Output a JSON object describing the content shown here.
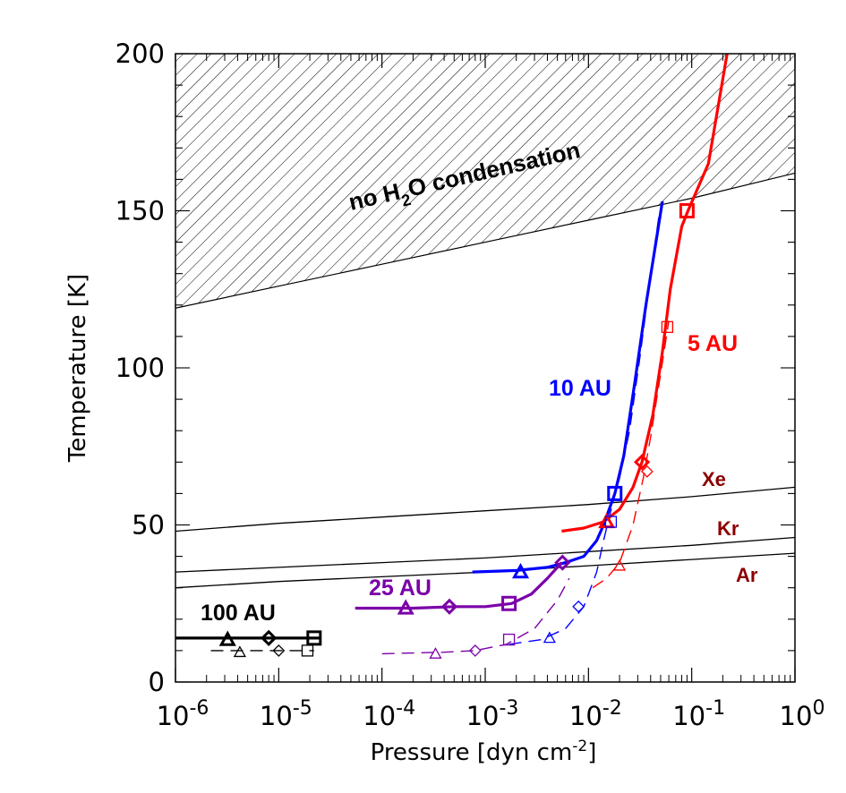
{
  "chart_data": {
    "type": "line",
    "xlabel": "Pressure [dyn cm",
    "xlabel_superscript": "-2",
    "xlabel_close": "]",
    "ylabel": "Temperature [K]",
    "x_scale": "log",
    "xlim": [
      1e-06,
      1
    ],
    "ylim": [
      0,
      200
    ],
    "x_ticks": [
      {
        "value": 1e-06,
        "base": "10",
        "exp": "-6"
      },
      {
        "value": 1e-05,
        "base": "10",
        "exp": "-5"
      },
      {
        "value": 0.0001,
        "base": "10",
        "exp": "-4"
      },
      {
        "value": 0.001,
        "base": "10",
        "exp": "-3"
      },
      {
        "value": 0.01,
        "base": "10",
        "exp": "-2"
      },
      {
        "value": 0.1,
        "base": "10",
        "exp": "-1"
      },
      {
        "value": 1,
        "base": "10",
        "exp": "0"
      }
    ],
    "y_ticks": [
      {
        "value": 0,
        "label": "0"
      },
      {
        "value": 50,
        "label": "50"
      },
      {
        "value": 100,
        "label": "100"
      },
      {
        "value": 150,
        "label": "150"
      },
      {
        "value": 200,
        "label": "200"
      }
    ],
    "shaded_region": {
      "label_prefix": "no H",
      "label_sub": "2",
      "label_suffix": "O condensation",
      "boundary": [
        [
          1e-06,
          119
        ],
        [
          1e-05,
          126
        ],
        [
          0.0001,
          133
        ],
        [
          0.001,
          140
        ],
        [
          0.01,
          147
        ],
        [
          0.1,
          154
        ],
        [
          1,
          162
        ]
      ],
      "pattern": "diagonal hatching"
    },
    "condensation_curves": [
      {
        "name": "Xe",
        "color": "#000000",
        "points": [
          [
            1e-06,
            48
          ],
          [
            1e-05,
            50.5
          ],
          [
            0.0001,
            52.5
          ],
          [
            0.001,
            54.5
          ],
          [
            0.01,
            56.5
          ],
          [
            0.1,
            59
          ],
          [
            1,
            62
          ]
        ]
      },
      {
        "name": "Kr",
        "color": "#000000",
        "points": [
          [
            1e-06,
            35
          ],
          [
            1e-05,
            36.5
          ],
          [
            0.0001,
            38
          ],
          [
            0.001,
            39.5
          ],
          [
            0.01,
            41.5
          ],
          [
            0.1,
            43.5
          ],
          [
            1,
            46
          ]
        ]
      },
      {
        "name": "Ar",
        "color": "#000000",
        "points": [
          [
            1e-06,
            30
          ],
          [
            1e-05,
            32
          ],
          [
            0.0001,
            33.5
          ],
          [
            0.001,
            35
          ],
          [
            0.01,
            37
          ],
          [
            0.1,
            39
          ],
          [
            1,
            41
          ]
        ]
      }
    ],
    "series": [
      {
        "name": "5 AU",
        "color": "#ff0000",
        "solid": [
          [
            0.0055,
            48
          ],
          [
            0.009,
            49
          ],
          [
            0.014,
            51
          ],
          [
            0.02,
            55
          ],
          [
            0.027,
            62
          ],
          [
            0.033,
            70
          ],
          [
            0.042,
            85
          ],
          [
            0.052,
            105
          ],
          [
            0.062,
            125
          ],
          [
            0.08,
            145
          ],
          [
            0.092,
            150
          ],
          [
            0.145,
            165
          ],
          [
            0.22,
            200
          ]
        ],
        "solid_markers": [
          {
            "shape": "triangle",
            "x": 0.015,
            "y": 51
          },
          {
            "shape": "diamond",
            "x": 0.033,
            "y": 70
          },
          {
            "shape": "square",
            "x": 0.09,
            "y": 150
          }
        ],
        "dashed": [
          [
            0.011,
            30
          ],
          [
            0.015,
            33
          ],
          [
            0.02,
            38
          ],
          [
            0.027,
            50
          ],
          [
            0.034,
            65
          ],
          [
            0.04,
            78
          ],
          [
            0.05,
            98
          ],
          [
            0.06,
            115
          ]
        ],
        "dashed_markers": [
          {
            "shape": "triangle",
            "x": 0.02,
            "y": 37
          },
          {
            "shape": "diamond",
            "x": 0.037,
            "y": 67
          },
          {
            "shape": "square",
            "x": 0.058,
            "y": 113
          }
        ]
      },
      {
        "name": "10 AU",
        "color": "#0000ff",
        "solid": [
          [
            0.00075,
            35
          ],
          [
            0.002,
            35.5
          ],
          [
            0.004,
            36.5
          ],
          [
            0.006,
            38
          ],
          [
            0.009,
            40
          ],
          [
            0.012,
            45
          ],
          [
            0.014,
            50
          ],
          [
            0.018,
            60
          ],
          [
            0.022,
            72
          ],
          [
            0.028,
            95
          ],
          [
            0.036,
            120
          ],
          [
            0.045,
            140
          ],
          [
            0.052,
            153
          ]
        ],
        "solid_markers": [
          {
            "shape": "triangle",
            "x": 0.0022,
            "y": 35
          },
          {
            "shape": "square",
            "x": 0.018,
            "y": 60
          }
        ],
        "dashed": [
          [
            0.0017,
            12
          ],
          [
            0.0035,
            13.5
          ],
          [
            0.006,
            17
          ],
          [
            0.009,
            24
          ],
          [
            0.012,
            35
          ],
          [
            0.014,
            45
          ],
          [
            0.016,
            53
          ],
          [
            0.02,
            65
          ],
          [
            0.025,
            80
          ],
          [
            0.032,
            105
          ],
          [
            0.04,
            130
          ],
          [
            0.048,
            148
          ],
          [
            0.053,
            153
          ]
        ],
        "dashed_markers": [
          {
            "shape": "triangle",
            "x": 0.0042,
            "y": 14
          },
          {
            "shape": "diamond",
            "x": 0.008,
            "y": 24
          },
          {
            "shape": "square",
            "x": 0.0165,
            "y": 51
          }
        ]
      },
      {
        "name": "25 AU",
        "color": "#7b00a8",
        "solid": [
          [
            5.5e-05,
            23.5
          ],
          [
            0.0002,
            23.5
          ],
          [
            0.0005,
            24
          ],
          [
            0.001,
            24
          ],
          [
            0.0018,
            25
          ],
          [
            0.0028,
            28
          ],
          [
            0.004,
            33
          ],
          [
            0.0055,
            38
          ]
        ],
        "solid_markers": [
          {
            "shape": "triangle",
            "x": 0.00017,
            "y": 23.5
          },
          {
            "shape": "diamond",
            "x": 0.00045,
            "y": 24
          },
          {
            "shape": "square",
            "x": 0.0017,
            "y": 25
          },
          {
            "shape": "diamond",
            "x": 0.0056,
            "y": 38
          }
        ],
        "dashed": [
          [
            0.0001,
            9
          ],
          [
            0.0004,
            9.5
          ],
          [
            0.0008,
            10
          ],
          [
            0.0016,
            12
          ],
          [
            0.003,
            17
          ],
          [
            0.005,
            26
          ],
          [
            0.0065,
            33
          ]
        ],
        "dashed_markers": [
          {
            "shape": "triangle",
            "x": 0.00033,
            "y": 9
          },
          {
            "shape": "diamond",
            "x": 0.0008,
            "y": 10
          },
          {
            "shape": "square",
            "x": 0.0017,
            "y": 13.5
          }
        ]
      },
      {
        "name": "100 AU",
        "color": "#000000",
        "solid": [
          [
            1e-06,
            14
          ],
          [
            3e-06,
            14
          ],
          [
            1e-05,
            14
          ],
          [
            2.5e-05,
            14
          ]
        ],
        "solid_markers": [
          {
            "shape": "triangle",
            "x": 3.2e-06,
            "y": 13.5
          },
          {
            "shape": "diamond",
            "x": 8e-06,
            "y": 14
          },
          {
            "shape": "square",
            "x": 2.2e-05,
            "y": 14
          }
        ],
        "dashed": [
          [
            2.2e-06,
            10
          ],
          [
            5e-06,
            10
          ],
          [
            1e-05,
            10
          ],
          [
            2.2e-05,
            10
          ]
        ],
        "dashed_markers": [
          {
            "shape": "triangle",
            "x": 4.2e-06,
            "y": 9.5
          },
          {
            "shape": "diamond",
            "x": 1e-05,
            "y": 10
          },
          {
            "shape": "square",
            "x": 1.9e-05,
            "y": 10
          }
        ]
      }
    ]
  }
}
